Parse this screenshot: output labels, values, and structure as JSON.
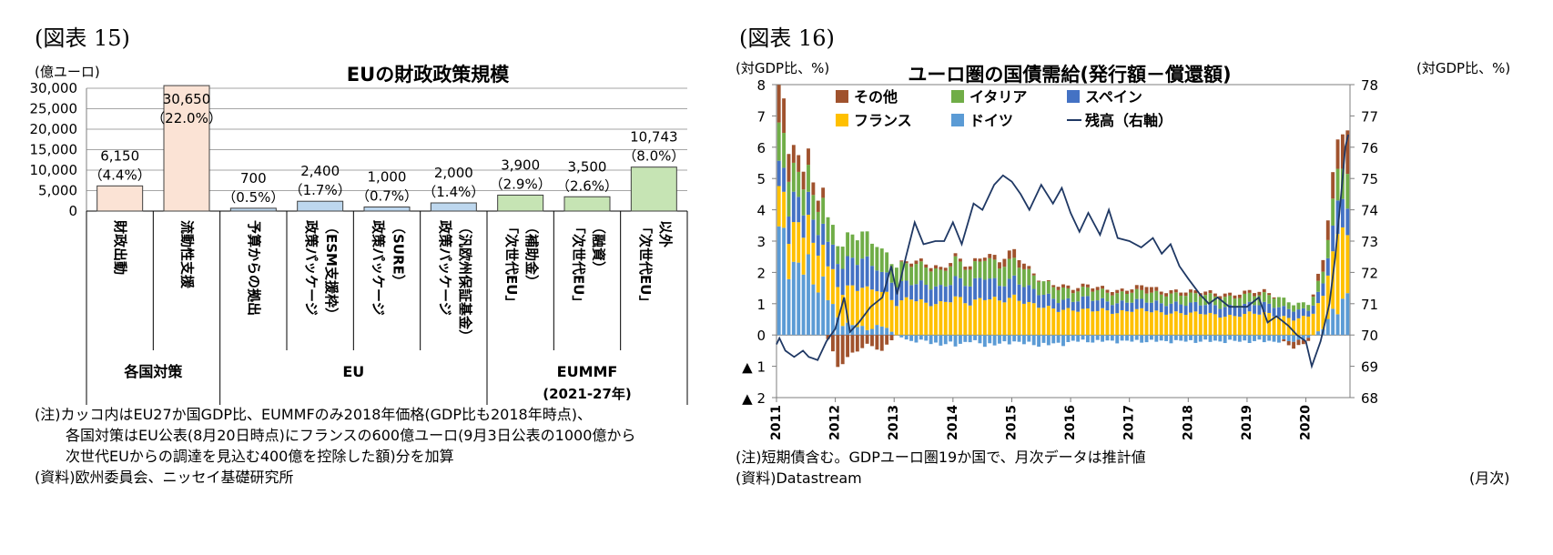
{
  "left": {
    "fig_label": "(図表 15)",
    "title": "EUの財政政策規模",
    "unit": "(億ユーロ)",
    "chart_data": {
      "type": "bar",
      "title": "EUの財政政策規模",
      "ylabel": "(億ユーロ)",
      "ylim": [
        0,
        30000
      ],
      "yticks": [
        "0",
        "5,000",
        "10,000",
        "15,000",
        "20,000",
        "25,000",
        "30,000"
      ],
      "bars": [
        {
          "name": "財政出動",
          "value": 6150,
          "value_label": "6,150",
          "pct_label": "（4.4%）",
          "color": "#fbe3d5",
          "cat_lines": [
            "財政出動"
          ]
        },
        {
          "name": "流動性支援",
          "value": 30650,
          "value_label": "30,650",
          "pct_label": "（22.0%）",
          "color": "#fbe3d5",
          "cat_lines": [
            "流動性支援"
          ]
        },
        {
          "name": "予算からの拠出",
          "value": 700,
          "value_label": "700",
          "pct_label": "（0.5%）",
          "color": "#bdd7ee",
          "cat_lines": [
            "予算からの拠出"
          ]
        },
        {
          "name": "政策パッケージ（ESM支援枠）",
          "value": 2400,
          "value_label": "2,400",
          "pct_label": "（1.7%）",
          "color": "#bdd7ee",
          "cat_lines": [
            "政策パッケージ",
            "（ESM支援枠）"
          ]
        },
        {
          "name": "政策パッケージ（SURE）",
          "value": 1000,
          "value_label": "1,000",
          "pct_label": "（0.7%）",
          "color": "#bdd7ee",
          "cat_lines": [
            "政策パッケージ",
            "（SURE）"
          ]
        },
        {
          "name": "政策パッケージ（汎欧州保証基金）",
          "value": 2000,
          "value_label": "2,000",
          "pct_label": "（1.4%）",
          "color": "#bdd7ee",
          "cat_lines": [
            "政策パッケージ",
            "（汎欧州保証基金）"
          ]
        },
        {
          "name": "「次世代EU」（補助金）",
          "value": 3900,
          "value_label": "3,900",
          "pct_label": "（2.9%）",
          "color": "#c6e4b4",
          "cat_lines": [
            "「次世代EU」",
            "（補助金）"
          ]
        },
        {
          "name": "「次世代EU」（融資）",
          "value": 3500,
          "value_label": "3,500",
          "pct_label": "（2.6%）",
          "color": "#c6e4b4",
          "cat_lines": [
            "「次世代EU」",
            "（融資）"
          ]
        },
        {
          "name": "「次世代EU」以外",
          "value": 10743,
          "value_label": "10,743",
          "pct_label": "（8.0%）",
          "color": "#c6e4b4",
          "cat_lines": [
            "「次世代EU」",
            "以外"
          ]
        }
      ],
      "groups": [
        {
          "label": "各国対策",
          "sub": ""
        },
        {
          "label": "EU",
          "sub": ""
        },
        {
          "label": "EUMMF",
          "sub": "(2021-27年)"
        }
      ]
    },
    "notes": [
      "(注)カッコ内はEU27か国GDP比、EUMMFのみ2018年価格(GDP比も2018年時点)、",
      "各国対策はEU公表(8月20日時点)にフランスの600億ユーロ(9月3日公表の1000億から",
      "次世代EUからの調達を見込む400億を控除した額)分を加算",
      "(資料)欧州委員会、ニッセイ基礎研究所"
    ]
  },
  "right": {
    "fig_label": "(図表 16)",
    "title": "ユーロ圏の国債需給(発行額－償還額)",
    "unit_left": "(対GDP比、%)",
    "unit_right": "(対GDP比、%)",
    "chart_data": {
      "type": "bar",
      "stacked": true,
      "title": "ユーロ圏の国債需給(発行額－償還額)",
      "ylim_left": [
        -2,
        8
      ],
      "ylim_right": [
        68,
        78
      ],
      "yticks_left": [
        "8",
        "7",
        "6",
        "5",
        "4",
        "3",
        "2",
        "1",
        "0",
        "▲ 1",
        "▲ 2"
      ],
      "yticks_right": [
        "78",
        "77",
        "76",
        "75",
        "74",
        "73",
        "72",
        "71",
        "70",
        "69",
        "68"
      ],
      "x_years": [
        "2011",
        "2012",
        "2013",
        "2014",
        "2015",
        "2016",
        "2017",
        "2018",
        "2019",
        "2020"
      ],
      "x_range": [
        2011.0,
        2020.75
      ],
      "series": [
        {
          "name": "その他",
          "color": "#a0522d"
        },
        {
          "name": "イタリア",
          "color": "#70ad47"
        },
        {
          "name": "スペイン",
          "color": "#4472c4"
        },
        {
          "name": "フランス",
          "color": "#ffc000"
        },
        {
          "name": "ドイツ",
          "color": "#5b9bd5"
        },
        {
          "name": "残高（右軸）",
          "color": "#1f3864"
        }
      ],
      "anchors": [
        [
          2011.0,
          3.1,
          1.2,
          0.8,
          1.3,
          1.3
        ],
        [
          2011.25,
          2.3,
          1.2,
          0.9,
          0.9,
          0.6
        ],
        [
          2011.5,
          2.0,
          1.3,
          0.7,
          0.8,
          0.5
        ],
        [
          2011.75,
          1.6,
          1.1,
          0.7,
          0.8,
          0.3
        ],
        [
          2012.0,
          0.5,
          1.0,
          0.8,
          0.6,
          -1.0
        ],
        [
          2012.25,
          0.3,
          1.2,
          0.9,
          0.8,
          -0.6
        ],
        [
          2012.5,
          0.2,
          1.3,
          0.9,
          0.8,
          -0.3
        ],
        [
          2012.75,
          0.3,
          1.1,
          0.6,
          0.7,
          -0.5
        ],
        [
          2013.0,
          0.0,
          1.0,
          0.6,
          0.6,
          0.0
        ],
        [
          2013.25,
          -0.2,
          1.2,
          0.5,
          0.6,
          0.1
        ],
        [
          2013.5,
          -0.2,
          1.0,
          0.6,
          0.6,
          0.1
        ],
        [
          2013.75,
          -0.3,
          1.0,
          0.5,
          0.5,
          0.1
        ],
        [
          2014.0,
          -0.3,
          1.2,
          0.6,
          0.6,
          0.1
        ],
        [
          2014.25,
          -0.2,
          1.0,
          0.6,
          0.5,
          0.1
        ],
        [
          2014.5,
          -0.3,
          1.2,
          0.7,
          0.6,
          0.1
        ],
        [
          2014.75,
          -0.3,
          1.1,
          0.5,
          0.6,
          0.2
        ],
        [
          2015.0,
          -0.2,
          1.2,
          0.6,
          0.6,
          0.3
        ],
        [
          2015.25,
          -0.3,
          1.0,
          0.5,
          0.5,
          0.1
        ],
        [
          2015.5,
          -0.3,
          0.9,
          0.4,
          0.4,
          0.0
        ],
        [
          2015.75,
          -0.3,
          0.8,
          0.3,
          0.4,
          0.1
        ],
        [
          2016.0,
          -0.2,
          0.8,
          0.3,
          0.3,
          0.1
        ],
        [
          2016.25,
          -0.2,
          0.8,
          0.4,
          0.3,
          0.1
        ],
        [
          2016.5,
          -0.2,
          0.8,
          0.3,
          0.3,
          0.1
        ],
        [
          2016.75,
          -0.2,
          0.7,
          0.3,
          0.3,
          0.1
        ],
        [
          2017.0,
          -0.2,
          0.8,
          0.3,
          0.3,
          0.1
        ],
        [
          2017.25,
          -0.2,
          0.8,
          0.3,
          0.3,
          0.2
        ],
        [
          2017.5,
          -0.2,
          0.7,
          0.3,
          0.3,
          0.1
        ],
        [
          2017.75,
          -0.2,
          0.7,
          0.3,
          0.3,
          0.1
        ],
        [
          2018.0,
          -0.2,
          0.7,
          0.3,
          0.3,
          0.1
        ],
        [
          2018.25,
          -0.2,
          0.7,
          0.3,
          0.3,
          0.1
        ],
        [
          2018.5,
          -0.2,
          0.6,
          0.3,
          0.3,
          0.1
        ],
        [
          2018.75,
          -0.2,
          0.6,
          0.3,
          0.3,
          0.1
        ],
        [
          2019.0,
          -0.2,
          0.7,
          0.3,
          0.3,
          0.1
        ],
        [
          2019.25,
          -0.2,
          0.7,
          0.3,
          0.3,
          0.1
        ],
        [
          2019.5,
          -0.2,
          0.6,
          0.3,
          0.3,
          0.0
        ],
        [
          2019.75,
          -0.2,
          0.5,
          0.3,
          0.2,
          -0.2
        ],
        [
          2020.0,
          -0.1,
          0.6,
          0.2,
          0.2,
          -0.1
        ],
        [
          2020.25,
          0.2,
          1.0,
          0.4,
          0.4,
          0.4
        ],
        [
          2020.5,
          1.0,
          2.4,
          1.0,
          1.0,
          1.0
        ],
        [
          2020.67,
          1.2,
          2.0,
          0.9,
          1.1,
          1.3
        ]
      ],
      "balance": [
        [
          2011.0,
          69.7
        ],
        [
          2011.05,
          69.9
        ],
        [
          2011.15,
          69.5
        ],
        [
          2011.3,
          69.3
        ],
        [
          2011.45,
          69.5
        ],
        [
          2011.55,
          69.3
        ],
        [
          2011.7,
          69.2
        ],
        [
          2011.85,
          69.8
        ],
        [
          2012.0,
          70.2
        ],
        [
          2012.15,
          71.2
        ],
        [
          2012.25,
          70.1
        ],
        [
          2012.4,
          70.4
        ],
        [
          2012.6,
          70.9
        ],
        [
          2012.8,
          71.2
        ],
        [
          2012.95,
          72.2
        ],
        [
          2013.05,
          71.3
        ],
        [
          2013.2,
          72.5
        ],
        [
          2013.35,
          73.6
        ],
        [
          2013.5,
          72.9
        ],
        [
          2013.7,
          73.0
        ],
        [
          2013.85,
          73.0
        ],
        [
          2014.0,
          73.6
        ],
        [
          2014.15,
          72.9
        ],
        [
          2014.35,
          74.2
        ],
        [
          2014.5,
          74.0
        ],
        [
          2014.7,
          74.8
        ],
        [
          2014.85,
          75.1
        ],
        [
          2015.0,
          74.9
        ],
        [
          2015.15,
          74.5
        ],
        [
          2015.3,
          74.0
        ],
        [
          2015.5,
          74.8
        ],
        [
          2015.7,
          74.2
        ],
        [
          2015.85,
          74.7
        ],
        [
          2016.0,
          73.9
        ],
        [
          2016.15,
          73.3
        ],
        [
          2016.3,
          73.9
        ],
        [
          2016.5,
          73.2
        ],
        [
          2016.65,
          74.0
        ],
        [
          2016.8,
          73.1
        ],
        [
          2017.0,
          73.0
        ],
        [
          2017.2,
          72.8
        ],
        [
          2017.4,
          73.1
        ],
        [
          2017.55,
          72.6
        ],
        [
          2017.7,
          72.9
        ],
        [
          2017.85,
          72.2
        ],
        [
          2018.0,
          71.8
        ],
        [
          2018.2,
          71.3
        ],
        [
          2018.35,
          71.0
        ],
        [
          2018.5,
          71.2
        ],
        [
          2018.7,
          70.9
        ],
        [
          2018.85,
          70.9
        ],
        [
          2019.0,
          70.9
        ],
        [
          2019.2,
          71.2
        ],
        [
          2019.35,
          70.4
        ],
        [
          2019.5,
          70.6
        ],
        [
          2019.7,
          70.3
        ],
        [
          2019.85,
          70.0
        ],
        [
          2020.0,
          69.8
        ],
        [
          2020.1,
          69.0
        ],
        [
          2020.25,
          69.8
        ],
        [
          2020.4,
          71.0
        ],
        [
          2020.5,
          72.5
        ],
        [
          2020.6,
          74.5
        ],
        [
          2020.67,
          76.0
        ],
        [
          2020.72,
          76.4
        ]
      ]
    },
    "notes": [
      "(注)短期債含む。GDPユーロ圏19か国で、月次データは推計値",
      "(資料)Datastream"
    ],
    "month_label": "(月次)"
  }
}
